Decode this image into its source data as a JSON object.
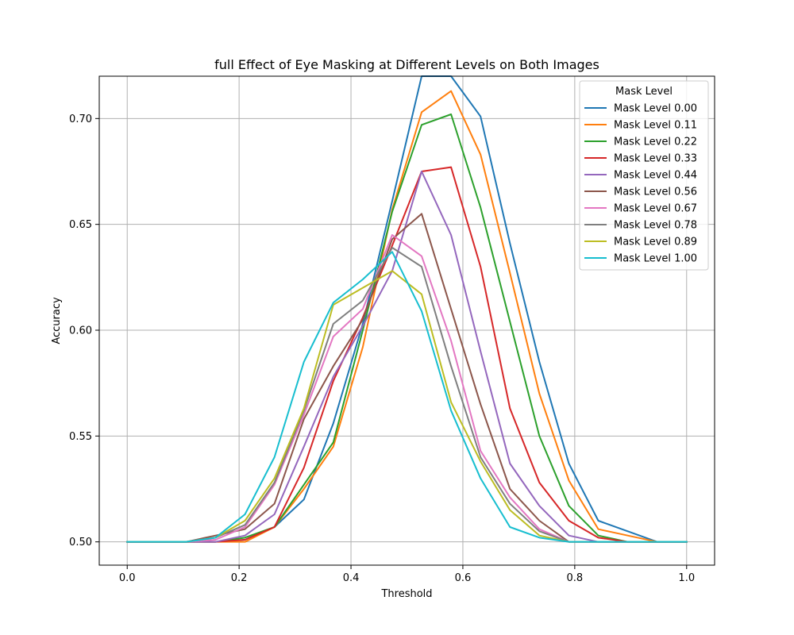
{
  "chart_data": {
    "type": "line",
    "title": "full Effect of Eye Masking at Different Levels on Both Images",
    "xlabel": "Threshold",
    "ylabel": "Accuracy",
    "xlim": [
      -0.05,
      1.05
    ],
    "ylim": [
      0.489,
      0.72
    ],
    "xticks": [
      0.0,
      0.2,
      0.4,
      0.6,
      0.8,
      1.0
    ],
    "xtick_labels": [
      "0.0",
      "0.2",
      "0.4",
      "0.6",
      "0.8",
      "1.0"
    ],
    "yticks": [
      0.5,
      0.55,
      0.6,
      0.65,
      0.7
    ],
    "ytick_labels": [
      "0.50",
      "0.55",
      "0.60",
      "0.65",
      "0.70"
    ],
    "grid": true,
    "legend": {
      "title": "Mask Level",
      "position": "top-right"
    },
    "x": [
      0.0,
      0.0526,
      0.1053,
      0.1579,
      0.2105,
      0.2632,
      0.3158,
      0.3684,
      0.4211,
      0.4737,
      0.5263,
      0.5789,
      0.6316,
      0.6842,
      0.7368,
      0.7895,
      0.8421,
      0.8947,
      0.9474,
      1.0
    ],
    "series": [
      {
        "name": "Mask Level 0.00",
        "color": "#1f77b4",
        "values": [
          0.5,
          0.5,
          0.5,
          0.5,
          0.501,
          0.507,
          0.52,
          0.556,
          0.603,
          0.661,
          0.72,
          0.72,
          0.701,
          0.641,
          0.585,
          0.537,
          0.51,
          0.505,
          0.5,
          0.5
        ]
      },
      {
        "name": "Mask Level 0.11",
        "color": "#ff7f0e",
        "values": [
          0.5,
          0.5,
          0.5,
          0.5,
          0.5,
          0.507,
          0.525,
          0.545,
          0.592,
          0.657,
          0.703,
          0.713,
          0.683,
          0.627,
          0.57,
          0.529,
          0.506,
          0.503,
          0.5,
          0.5
        ]
      },
      {
        "name": "Mask Level 0.22",
        "color": "#2ca02c",
        "values": [
          0.5,
          0.5,
          0.5,
          0.5,
          0.502,
          0.507,
          0.527,
          0.547,
          0.6,
          0.656,
          0.697,
          0.702,
          0.658,
          0.604,
          0.55,
          0.517,
          0.503,
          0.5,
          0.5,
          0.5
        ]
      },
      {
        "name": "Mask Level 0.33",
        "color": "#d62728",
        "values": [
          0.5,
          0.5,
          0.5,
          0.5,
          0.501,
          0.507,
          0.535,
          0.576,
          0.606,
          0.64,
          0.675,
          0.677,
          0.63,
          0.563,
          0.528,
          0.51,
          0.502,
          0.5,
          0.5,
          0.5
        ]
      },
      {
        "name": "Mask Level 0.44",
        "color": "#9467bd",
        "values": [
          0.5,
          0.5,
          0.5,
          0.5,
          0.503,
          0.513,
          0.545,
          0.578,
          0.602,
          0.628,
          0.675,
          0.645,
          0.59,
          0.537,
          0.517,
          0.503,
          0.5,
          0.5,
          0.5,
          0.5
        ]
      },
      {
        "name": "Mask Level 0.56",
        "color": "#8c564b",
        "values": [
          0.5,
          0.5,
          0.5,
          0.503,
          0.506,
          0.518,
          0.558,
          0.583,
          0.605,
          0.643,
          0.655,
          0.61,
          0.565,
          0.525,
          0.51,
          0.5,
          0.5,
          0.5,
          0.5,
          0.5
        ]
      },
      {
        "name": "Mask Level 0.67",
        "color": "#e377c2",
        "values": [
          0.5,
          0.5,
          0.5,
          0.501,
          0.507,
          0.527,
          0.56,
          0.597,
          0.61,
          0.645,
          0.635,
          0.595,
          0.543,
          0.521,
          0.506,
          0.5,
          0.5,
          0.5,
          0.5,
          0.5
        ]
      },
      {
        "name": "Mask Level 0.78",
        "color": "#7f7f7f",
        "values": [
          0.5,
          0.5,
          0.5,
          0.502,
          0.508,
          0.528,
          0.562,
          0.603,
          0.614,
          0.639,
          0.63,
          0.583,
          0.54,
          0.518,
          0.505,
          0.5,
          0.5,
          0.5,
          0.5,
          0.5
        ]
      },
      {
        "name": "Mask Level 0.89",
        "color": "#bcbd22",
        "values": [
          0.5,
          0.5,
          0.5,
          0.502,
          0.51,
          0.53,
          0.563,
          0.612,
          0.62,
          0.628,
          0.617,
          0.566,
          0.538,
          0.515,
          0.503,
          0.5,
          0.5,
          0.5,
          0.5,
          0.5
        ]
      },
      {
        "name": "Mask Level 1.00",
        "color": "#17becf",
        "values": [
          0.5,
          0.5,
          0.5,
          0.502,
          0.513,
          0.54,
          0.585,
          0.613,
          0.624,
          0.637,
          0.609,
          0.562,
          0.53,
          0.507,
          0.502,
          0.5,
          0.5,
          0.5,
          0.5,
          0.5
        ]
      }
    ]
  }
}
